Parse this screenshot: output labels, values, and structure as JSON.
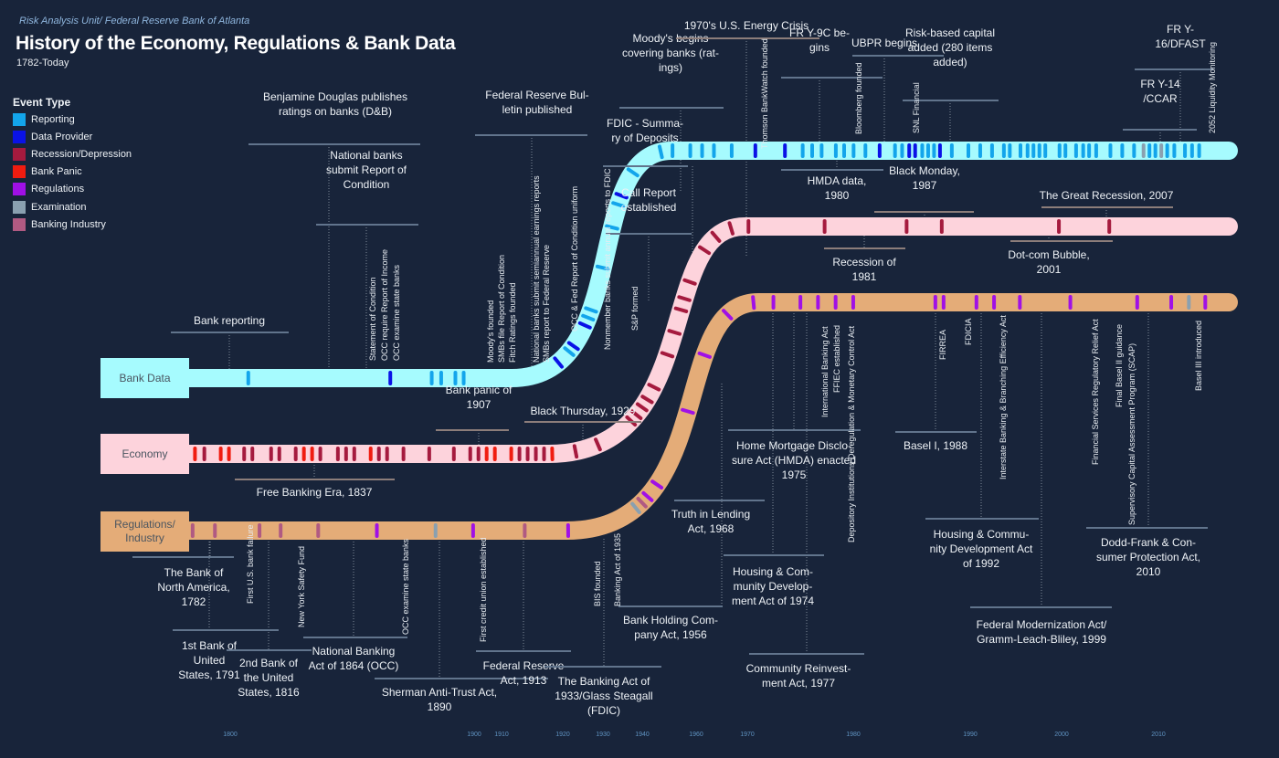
{
  "header": {
    "source": "Risk Analysis Unit/ Federal Reserve Bank of Atlanta",
    "title": "History of the Economy, Regulations & Bank Data",
    "subtitle": "1782-Today"
  },
  "legend": {
    "title": "Event Type",
    "items": [
      {
        "label": "Reporting",
        "color": "#13a5eb"
      },
      {
        "label": "Data Provider",
        "color": "#0a12e6"
      },
      {
        "label": "Recession/Depression",
        "color": "#a51a3e"
      },
      {
        "label": "Bank Panic",
        "color": "#f01c10"
      },
      {
        "label": "Regulations",
        "color": "#a010e6"
      },
      {
        "label": "Examination",
        "color": "#8aa0b0"
      },
      {
        "label": "Banking Industry",
        "color": "#b05a82"
      }
    ]
  },
  "lanes": [
    {
      "id": "bank",
      "label": "Bank Data",
      "color": "#a6fbfe",
      "text_color": "#4a5560"
    },
    {
      "id": "econ",
      "label": "Economy",
      "color": "#fdd3dc",
      "text_color": "#4a5560"
    },
    {
      "id": "reg",
      "label": "Regulations/ Industry",
      "color": "#e4ac78",
      "text_color": "#4a5560"
    }
  ],
  "axis_years": [
    "1800",
    "1900",
    "1910",
    "1920",
    "1930",
    "1940",
    "1960",
    "1970",
    "1980",
    "1990",
    "2000",
    "2010"
  ],
  "callouts": [
    {
      "text": [
        "Benjamine Douglas publishes",
        "ratings on banks (D&B)"
      ]
    },
    {
      "text": [
        "National banks",
        "submit Report of",
        "Condition"
      ]
    },
    {
      "text": [
        "Bank reporting"
      ]
    },
    {
      "text": [
        "Federal Reserve Bul-",
        "letin published"
      ]
    },
    {
      "text": [
        "FDIC - Summa-",
        "ry of Deposits"
      ]
    },
    {
      "text": [
        "Call Report",
        "established"
      ]
    },
    {
      "text": [
        "Moody's begins",
        "covering banks (rat-",
        "ings)"
      ]
    },
    {
      "text": [
        "1970's U.S. Energy Crisis"
      ]
    },
    {
      "text": [
        "FR Y-9C be-",
        "gins"
      ]
    },
    {
      "text": [
        "UBPR begins"
      ]
    },
    {
      "text": [
        "Risk-based capital",
        "added (280 items",
        "added)"
      ]
    },
    {
      "text": [
        "FR Y-",
        "16/DFAST"
      ]
    },
    {
      "text": [
        "FR Y-14",
        "/CCAR"
      ]
    },
    {
      "text": [
        "HMDA data,",
        "1980"
      ]
    },
    {
      "text": [
        "Black Monday,",
        "1987"
      ]
    },
    {
      "text": [
        "The Great Recession, 2007"
      ]
    },
    {
      "text": [
        "Recession of",
        "1981"
      ]
    },
    {
      "text": [
        "Dot-com Bubble,",
        "2001"
      ]
    },
    {
      "text": [
        "Bank panic of",
        "1907"
      ]
    },
    {
      "text": [
        "Black Thursday, 1929"
      ]
    },
    {
      "text": [
        "Free Banking Era, 1837"
      ]
    },
    {
      "text": [
        "The Bank of",
        "North America,",
        "1782"
      ]
    },
    {
      "text": [
        "1st Bank of",
        "United",
        "States, 1791"
      ]
    },
    {
      "text": [
        "2nd Bank of",
        "the United",
        "States, 1816"
      ]
    },
    {
      "text": [
        "National Banking",
        "Act of 1864 (OCC)"
      ]
    },
    {
      "text": [
        "Sherman Anti-Trust Act,",
        "1890"
      ]
    },
    {
      "text": [
        "Federal Reserve",
        "Act, 1913"
      ]
    },
    {
      "text": [
        "The Banking Act of",
        "1933/Glass Steagall",
        "(FDIC)"
      ]
    },
    {
      "text": [
        "Bank Holding Com-",
        "pany Act, 1956"
      ]
    },
    {
      "text": [
        "Truth in Lending",
        "Act, 1968"
      ]
    },
    {
      "text": [
        "Home Mortgage Disclo-",
        "sure Act (HMDA) enacted",
        "1975"
      ]
    },
    {
      "text": [
        "Housing & Com-",
        "munity Develop-",
        "ment Act of 1974"
      ]
    },
    {
      "text": [
        "Community Reinvest-",
        "ment Act, 1977"
      ]
    },
    {
      "text": [
        "Basel I, 1988"
      ]
    },
    {
      "text": [
        "Housing & Commu-",
        "nity Development Act",
        "of 1992"
      ]
    },
    {
      "text": [
        "Federal Modernization Act/",
        "Gramm-Leach-Bliley, 1999"
      ]
    },
    {
      "text": [
        "Dodd-Frank & Con-",
        "sumer Protection Act,",
        "2010"
      ]
    }
  ],
  "vertical_labels": [
    "Statement of Condition",
    "OCC require Report of Income",
    "OCC examine state banks",
    "Moody's founded",
    "SMBs file Report of Condition",
    "Fitch Ratings founded",
    "National banks submit semiannual earnings reports",
    "SMBs report to Federal Reserve",
    "OCC & Fed Report of Condition uniform",
    "Nonmember banks submit annual reports to FDIC",
    "S&P formed",
    "Thomson BankWatch founded",
    "Bloomberg founded",
    "SNL Financial",
    "2052 Liquidity Monitoring",
    "First U.S. bank failure",
    "New York Safety Fund",
    "OCC examine state banks",
    "First credit union established",
    "BIS founded",
    "Banking Act of 1935",
    "International Banking Act",
    "FFIEC established",
    "Depository Institutions Deregulation & Monetary Control Act",
    "FIRREA",
    "FDICIA",
    "Interstate Banking & Branching Efficiency Act",
    "Financial Services Regulatory Relief Act",
    "Final Basel II guidance",
    "Supervisory Capital Assessment Program (SCAP)",
    "Basel III introduced"
  ],
  "events": {
    "bank": [
      {
        "t": 0.05,
        "type": "Reporting"
      },
      {
        "t": 0.17,
        "type": "Data Provider"
      },
      {
        "t": 0.205,
        "type": "Reporting"
      },
      {
        "t": 0.213,
        "type": "Reporting"
      },
      {
        "t": 0.225,
        "type": "Reporting"
      },
      {
        "t": 0.232,
        "type": "Reporting"
      },
      {
        "t": 0.315,
        "type": "Data Provider"
      },
      {
        "t": 0.328,
        "type": "Reporting"
      },
      {
        "t": 0.334,
        "type": "Data Provider"
      },
      {
        "t": 0.354,
        "type": "Data Provider"
      },
      {
        "t": 0.361,
        "type": "Reporting"
      },
      {
        "t": 0.368,
        "type": "Reporting"
      },
      {
        "t": 0.405,
        "type": "Reporting"
      },
      {
        "t": 0.44,
        "type": "Reporting"
      },
      {
        "t": 0.46,
        "type": "Reporting"
      },
      {
        "t": 0.468,
        "type": "Data Provider"
      },
      {
        "t": 0.49,
        "type": "Reporting"
      },
      {
        "t": 0.52,
        "type": "Reporting"
      },
      {
        "t": 0.53,
        "type": "Reporting"
      },
      {
        "t": 0.545,
        "type": "Reporting"
      },
      {
        "t": 0.555,
        "type": "Reporting"
      },
      {
        "t": 0.565,
        "type": "Reporting"
      },
      {
        "t": 0.58,
        "type": "Reporting"
      },
      {
        "t": 0.6,
        "type": "Data Provider"
      },
      {
        "t": 0.625,
        "type": "Data Provider"
      },
      {
        "t": 0.64,
        "type": "Reporting"
      },
      {
        "t": 0.648,
        "type": "Reporting"
      },
      {
        "t": 0.656,
        "type": "Reporting"
      },
      {
        "t": 0.668,
        "type": "Reporting"
      },
      {
        "t": 0.675,
        "type": "Reporting"
      },
      {
        "t": 0.683,
        "type": "Reporting"
      },
      {
        "t": 0.693,
        "type": "Reporting"
      },
      {
        "t": 0.705,
        "type": "Data Provider"
      },
      {
        "t": 0.718,
        "type": "Reporting"
      },
      {
        "t": 0.724,
        "type": "Reporting"
      },
      {
        "t": 0.73,
        "type": "Data Provider"
      },
      {
        "t": 0.735,
        "type": "Data Provider"
      },
      {
        "t": 0.741,
        "type": "Reporting"
      },
      {
        "t": 0.746,
        "type": "Reporting"
      },
      {
        "t": 0.751,
        "type": "Reporting"
      },
      {
        "t": 0.756,
        "type": "Data Provider"
      },
      {
        "t": 0.766,
        "type": "Reporting"
      },
      {
        "t": 0.78,
        "type": "Reporting"
      },
      {
        "t": 0.79,
        "type": "Reporting"
      },
      {
        "t": 0.8,
        "type": "Reporting"
      },
      {
        "t": 0.81,
        "type": "Reporting"
      },
      {
        "t": 0.815,
        "type": "Reporting"
      },
      {
        "t": 0.824,
        "type": "Reporting"
      },
      {
        "t": 0.83,
        "type": "Reporting"
      },
      {
        "t": 0.835,
        "type": "Reporting"
      },
      {
        "t": 0.84,
        "type": "Reporting"
      },
      {
        "t": 0.845,
        "type": "Reporting"
      },
      {
        "t": 0.857,
        "type": "Reporting"
      },
      {
        "t": 0.862,
        "type": "Reporting"
      },
      {
        "t": 0.871,
        "type": "Reporting"
      },
      {
        "t": 0.877,
        "type": "Reporting"
      },
      {
        "t": 0.882,
        "type": "Reporting"
      },
      {
        "t": 0.888,
        "type": "Reporting"
      },
      {
        "t": 0.9,
        "type": "Reporting"
      },
      {
        "t": 0.91,
        "type": "Reporting"
      },
      {
        "t": 0.92,
        "type": "Reporting"
      },
      {
        "t": 0.928,
        "type": "Examination"
      },
      {
        "t": 0.933,
        "type": "Reporting"
      },
      {
        "t": 0.938,
        "type": "Reporting"
      },
      {
        "t": 0.943,
        "type": "Examination"
      },
      {
        "t": 0.948,
        "type": "Reporting"
      },
      {
        "t": 0.954,
        "type": "Reporting"
      },
      {
        "t": 0.963,
        "type": "Reporting"
      },
      {
        "t": 0.969,
        "type": "Reporting"
      },
      {
        "t": 0.975,
        "type": "Reporting"
      }
    ],
    "econ": [
      {
        "t": 0.005,
        "type": "Bank Panic"
      },
      {
        "t": 0.013,
        "type": "Recession/Depression"
      },
      {
        "t": 0.027,
        "type": "Bank Panic"
      },
      {
        "t": 0.034,
        "type": "Bank Panic"
      },
      {
        "t": 0.047,
        "type": "Recession/Depression"
      },
      {
        "t": 0.054,
        "type": "Recession/Depression"
      },
      {
        "t": 0.07,
        "type": "Recession/Depression"
      },
      {
        "t": 0.077,
        "type": "Recession/Depression"
      },
      {
        "t": 0.091,
        "type": "Recession/Depression"
      },
      {
        "t": 0.098,
        "type": "Bank Panic"
      },
      {
        "t": 0.105,
        "type": "Bank Panic"
      },
      {
        "t": 0.112,
        "type": "Recession/Depression"
      },
      {
        "t": 0.127,
        "type": "Recession/Depression"
      },
      {
        "t": 0.134,
        "type": "Recession/Depression"
      },
      {
        "t": 0.141,
        "type": "Recession/Depression"
      },
      {
        "t": 0.155,
        "type": "Bank Panic"
      },
      {
        "t": 0.162,
        "type": "Recession/Depression"
      },
      {
        "t": 0.169,
        "type": "Recession/Depression"
      },
      {
        "t": 0.183,
        "type": "Recession/Depression"
      },
      {
        "t": 0.205,
        "type": "Recession/Depression"
      },
      {
        "t": 0.226,
        "type": "Recession/Depression"
      },
      {
        "t": 0.24,
        "type": "Recession/Depression"
      },
      {
        "t": 0.247,
        "type": "Recession/Depression"
      },
      {
        "t": 0.254,
        "type": "Bank Panic"
      },
      {
        "t": 0.261,
        "type": "Bank Panic"
      },
      {
        "t": 0.275,
        "type": "Bank Panic"
      },
      {
        "t": 0.282,
        "type": "Recession/Depression"
      },
      {
        "t": 0.289,
        "type": "Recession/Depression"
      },
      {
        "t": 0.296,
        "type": "Recession/Depression"
      },
      {
        "t": 0.303,
        "type": "Recession/Depression"
      },
      {
        "t": 0.31,
        "type": "Bank Panic"
      },
      {
        "t": 0.33,
        "type": "Recession/Depression"
      },
      {
        "t": 0.35,
        "type": "Recession/Depression"
      },
      {
        "t": 0.385,
        "type": "Recession/Depression"
      },
      {
        "t": 0.392,
        "type": "Recession/Depression"
      },
      {
        "t": 0.4,
        "type": "Recession/Depression"
      },
      {
        "t": 0.408,
        "type": "Recession/Depression"
      },
      {
        "t": 0.42,
        "type": "Recession/Depression"
      },
      {
        "t": 0.45,
        "type": "Recession/Depression"
      },
      {
        "t": 0.47,
        "type": "Recession/Depression"
      },
      {
        "t": 0.49,
        "type": "Recession/Depression"
      },
      {
        "t": 0.5,
        "type": "Recession/Depression"
      },
      {
        "t": 0.515,
        "type": "Recession/Depression"
      },
      {
        "t": 0.545,
        "type": "Recession/Depression"
      },
      {
        "t": 0.56,
        "type": "Recession/Depression"
      },
      {
        "t": 0.575,
        "type": "Recession/Depression"
      },
      {
        "t": 0.59,
        "type": "Recession/Depression"
      },
      {
        "t": 0.655,
        "type": "Recession/Depression"
      },
      {
        "t": 0.725,
        "type": "Recession/Depression"
      },
      {
        "t": 0.755,
        "type": "Recession/Depression"
      },
      {
        "t": 0.855,
        "type": "Recession/Depression"
      },
      {
        "t": 0.898,
        "type": "Recession/Depression"
      }
    ],
    "reg": [
      {
        "t": 0.003,
        "type": "Banking Industry"
      },
      {
        "t": 0.022,
        "type": "Banking Industry"
      },
      {
        "t": 0.06,
        "type": "Banking Industry"
      },
      {
        "t": 0.078,
        "type": "Banking Industry"
      },
      {
        "t": 0.11,
        "type": "Banking Industry"
      },
      {
        "t": 0.16,
        "type": "Regulations"
      },
      {
        "t": 0.21,
        "type": "Examination"
      },
      {
        "t": 0.242,
        "type": "Regulations"
      },
      {
        "t": 0.286,
        "type": "Banking Industry"
      },
      {
        "t": 0.323,
        "type": "Regulations"
      },
      {
        "t": 0.385,
        "type": "Examination"
      },
      {
        "t": 0.392,
        "type": "Banking Industry"
      },
      {
        "t": 0.399,
        "type": "Regulations"
      },
      {
        "t": 0.412,
        "type": "Regulations"
      },
      {
        "t": 0.48,
        "type": "Regulations"
      },
      {
        "t": 0.53,
        "type": "Regulations"
      },
      {
        "t": 0.57,
        "type": "Regulations"
      },
      {
        "t": 0.595,
        "type": "Regulations"
      },
      {
        "t": 0.612,
        "type": "Regulations"
      },
      {
        "t": 0.635,
        "type": "Regulations"
      },
      {
        "t": 0.65,
        "type": "Regulations"
      },
      {
        "t": 0.665,
        "type": "Regulations"
      },
      {
        "t": 0.68,
        "type": "Regulations"
      },
      {
        "t": 0.75,
        "type": "Regulations"
      },
      {
        "t": 0.757,
        "type": "Regulations"
      },
      {
        "t": 0.785,
        "type": "Regulations"
      },
      {
        "t": 0.8,
        "type": "Regulations"
      },
      {
        "t": 0.822,
        "type": "Regulations"
      },
      {
        "t": 0.865,
        "type": "Regulations"
      },
      {
        "t": 0.922,
        "type": "Regulations"
      },
      {
        "t": 0.951,
        "type": "Regulations"
      },
      {
        "t": 0.966,
        "type": "Examination"
      },
      {
        "t": 0.98,
        "type": "Regulations"
      }
    ]
  }
}
